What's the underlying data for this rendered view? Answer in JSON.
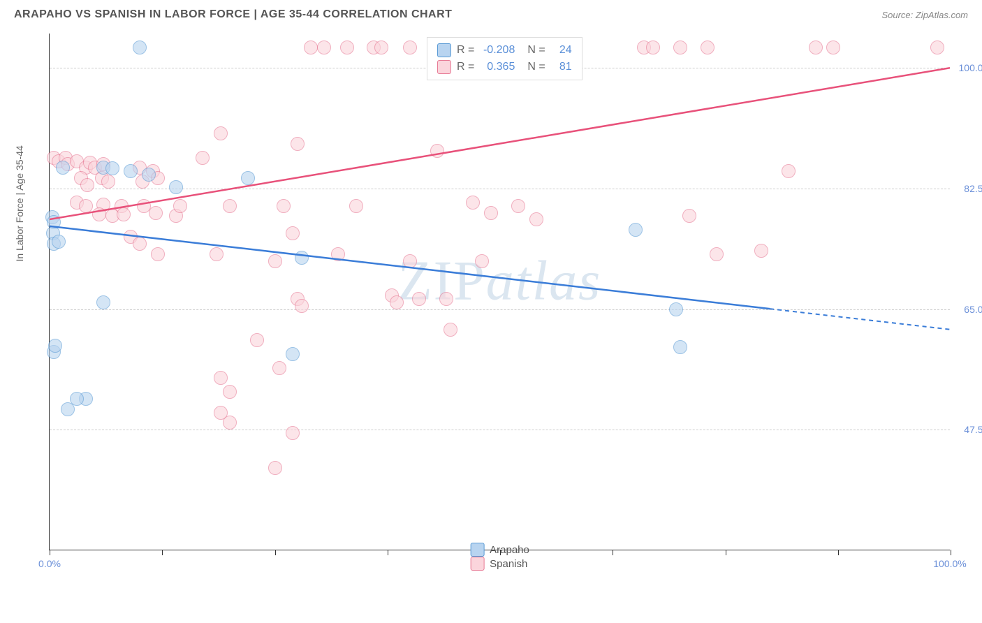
{
  "title": "ARAPAHO VS SPANISH IN LABOR FORCE | AGE 35-44 CORRELATION CHART",
  "source": "Source: ZipAtlas.com",
  "ylabel": "In Labor Force | Age 35-44",
  "watermark": "ZIPatlas",
  "chart": {
    "type": "scatter",
    "xlim": [
      0,
      100
    ],
    "ylim": [
      30,
      105
    ],
    "y_ticks": [
      47.5,
      65.0,
      82.5,
      100.0
    ],
    "y_tick_labels": [
      "47.5%",
      "65.0%",
      "82.5%",
      "100.0%"
    ],
    "x_ticks": [
      0,
      12.5,
      25,
      37.5,
      50,
      62.5,
      75,
      87.5,
      100
    ],
    "x_end_labels": [
      "0.0%",
      "100.0%"
    ],
    "background_color": "#ffffff",
    "grid_color": "#cccccc",
    "colors": {
      "blue_fill": "#b8d4f0",
      "blue_stroke": "#5a9bd5",
      "pink_fill": "#fbd5dc",
      "pink_stroke": "#e77a95",
      "blue_line": "#3b7dd8",
      "pink_line": "#e8517a",
      "axis_label": "#6a8fd8"
    },
    "marker_radius": 10,
    "marker_opacity": 0.6,
    "line_width": 2.5
  },
  "legend_top": {
    "series": [
      {
        "swatch": "blue",
        "r": "-0.208",
        "n": "24"
      },
      {
        "swatch": "pink",
        "r": "0.365",
        "n": "81"
      }
    ],
    "r_label": "R =",
    "n_label": "N ="
  },
  "legend_bottom": {
    "items": [
      {
        "swatch": "blue",
        "label": "Arapaho"
      },
      {
        "swatch": "pink",
        "label": "Spanish"
      }
    ]
  },
  "trend_lines": {
    "blue": {
      "x1": 0,
      "y1": 77,
      "x2": 80,
      "y2": 65,
      "x2_dash": 100,
      "y2_dash": 62
    },
    "pink": {
      "x1": 0,
      "y1": 78,
      "x2": 100,
      "y2": 100
    }
  },
  "data_blue": [
    [
      10,
      103
    ],
    [
      0.3,
      78.3
    ],
    [
      0.5,
      77.6
    ],
    [
      0.4,
      76
    ],
    [
      0.5,
      74.5
    ],
    [
      1,
      74.8
    ],
    [
      6,
      85.5
    ],
    [
      7,
      85.4
    ],
    [
      9,
      85
    ],
    [
      11,
      84.5
    ],
    [
      14,
      82.7
    ],
    [
      6,
      66
    ],
    [
      4,
      52
    ],
    [
      3,
      52
    ],
    [
      2,
      50.5
    ],
    [
      0.5,
      58.8
    ],
    [
      0.6,
      59.7
    ],
    [
      22,
      84
    ],
    [
      27,
      58.5
    ],
    [
      28,
      72.5
    ],
    [
      65,
      76.5
    ],
    [
      69.5,
      65
    ],
    [
      70,
      59.5
    ],
    [
      1.5,
      85.5
    ]
  ],
  "data_pink": [
    [
      0.5,
      87
    ],
    [
      1,
      86.5
    ],
    [
      1.8,
      87
    ],
    [
      2,
      86
    ],
    [
      3,
      86.5
    ],
    [
      4,
      85.5
    ],
    [
      4.5,
      86.2
    ],
    [
      5,
      85.5
    ],
    [
      6,
      86
    ],
    [
      3.5,
      84
    ],
    [
      4.2,
      83
    ],
    [
      5.8,
      84
    ],
    [
      6.5,
      83.5
    ],
    [
      3,
      80.5
    ],
    [
      4,
      80
    ],
    [
      6,
      80.2
    ],
    [
      8,
      80
    ],
    [
      5.5,
      78.8
    ],
    [
      7,
      78.5
    ],
    [
      8.2,
      78.8
    ],
    [
      10,
      85.5
    ],
    [
      10.3,
      83.5
    ],
    [
      11.5,
      85
    ],
    [
      12,
      84
    ],
    [
      10.5,
      80
    ],
    [
      11.8,
      79
    ],
    [
      9,
      75.5
    ],
    [
      10,
      74.5
    ],
    [
      12,
      73
    ],
    [
      14,
      78.5
    ],
    [
      14.5,
      80
    ],
    [
      17,
      87
    ],
    [
      19,
      90.5
    ],
    [
      20,
      80
    ],
    [
      18.5,
      73
    ],
    [
      27.5,
      89
    ],
    [
      26,
      80
    ],
    [
      27,
      76
    ],
    [
      27.5,
      66.5
    ],
    [
      28,
      65.5
    ],
    [
      25,
      72
    ],
    [
      23,
      60.5
    ],
    [
      25.5,
      56.5
    ],
    [
      25,
      42
    ],
    [
      19,
      55
    ],
    [
      20,
      53
    ],
    [
      32,
      73
    ],
    [
      34,
      80
    ],
    [
      36,
      103
    ],
    [
      40,
      72
    ],
    [
      38,
      67
    ],
    [
      38.5,
      66
    ],
    [
      41,
      66.5
    ],
    [
      43,
      88
    ],
    [
      44,
      66.5
    ],
    [
      44.5,
      62
    ],
    [
      47,
      80.5
    ],
    [
      48,
      72
    ],
    [
      49,
      79
    ],
    [
      52,
      80
    ],
    [
      54,
      78
    ],
    [
      29,
      103
    ],
    [
      30.5,
      103
    ],
    [
      33,
      103
    ],
    [
      36.8,
      103
    ],
    [
      40,
      103
    ],
    [
      43,
      103
    ],
    [
      66,
      103
    ],
    [
      67,
      103
    ],
    [
      70,
      103
    ],
    [
      73,
      103
    ],
    [
      85,
      103
    ],
    [
      87,
      103
    ],
    [
      98.5,
      103
    ],
    [
      71,
      78.5
    ],
    [
      74,
      73
    ],
    [
      79,
      73.5
    ],
    [
      82,
      85
    ],
    [
      19,
      50
    ],
    [
      20,
      48.5
    ],
    [
      27,
      47
    ]
  ]
}
